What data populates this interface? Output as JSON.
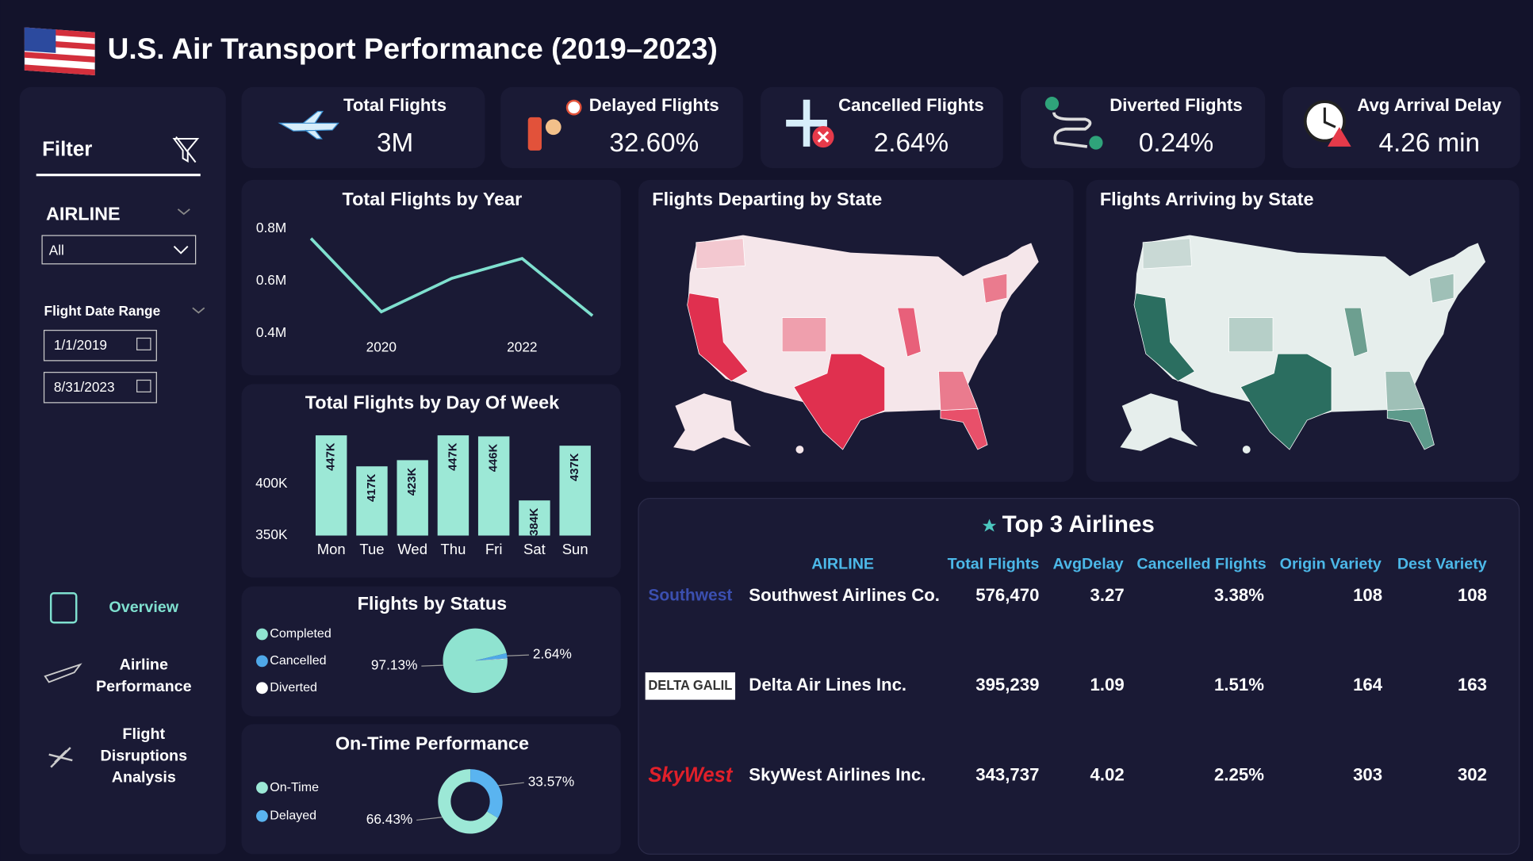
{
  "header": {
    "title": "U.S. Air Transport Performance (2019–2023)"
  },
  "kpis": [
    {
      "label": "Total Flights",
      "value": "3M"
    },
    {
      "label": "Delayed Flights",
      "value": "32.60%"
    },
    {
      "label": "Cancelled Flights",
      "value": "2.64%"
    },
    {
      "label": "Diverted Flights",
      "value": "0.24%"
    },
    {
      "label": "Avg Arrival Delay",
      "value": "4.26 min"
    }
  ],
  "filter": {
    "title": "Filter",
    "airline_label": "AIRLINE",
    "airline_value": "All",
    "date_label": "Flight Date Range",
    "date_start": "1/1/2019",
    "date_end": "8/31/2023"
  },
  "nav": [
    [
      "Overview"
    ],
    [
      "Airline",
      "Performance"
    ],
    [
      "Flight",
      "Disruptions",
      "Analysis"
    ]
  ],
  "maps": {
    "departing_title": "Flights Departing by State",
    "arriving_title": "Flights Arriving by State"
  },
  "chart_data": [
    {
      "type": "line",
      "title": "Total Flights by Year",
      "x": [
        2019,
        2020,
        2021,
        2022,
        2023
      ],
      "values": [
        763000,
        482000,
        610000,
        686000,
        467000
      ],
      "color": "#7fe0cf",
      "xlim": [
        2019,
        2023
      ],
      "xticks": [
        2020,
        2022
      ],
      "ylim": [
        385000,
        815000
      ],
      "yticks": [
        {
          "value": 400000,
          "label": "0.4M"
        },
        {
          "value": 600000,
          "label": "0.6M"
        },
        {
          "value": 800000,
          "label": "0.8M"
        }
      ]
    },
    {
      "type": "bar",
      "title": "Total Flights by Day Of Week",
      "categories": [
        "Mon",
        "Tue",
        "Wed",
        "Thu",
        "Fri",
        "Sat",
        "Sun"
      ],
      "values": [
        447000,
        417000,
        423000,
        447000,
        446000,
        384000,
        437000
      ],
      "value_labels": [
        "447K",
        "417K",
        "423K",
        "447K",
        "446K",
        "384K",
        "437K"
      ],
      "color": "#9ce8d6",
      "ylim": [
        350000,
        455000
      ],
      "yticks": [
        {
          "value": 350000,
          "label": "350K"
        },
        {
          "value": 400000,
          "label": "400K"
        }
      ]
    },
    {
      "type": "pie",
      "title": "Flights by Status",
      "categories": [
        "Completed",
        "Cancelled",
        "Diverted"
      ],
      "values": [
        97.13,
        2.64,
        0.24
      ],
      "value_labels": [
        "97.13%",
        "2.64%",
        null
      ],
      "colors": [
        "#8fe3d0",
        "#4fa8e8",
        "#ffffff"
      ]
    },
    {
      "type": "donut",
      "title": "On-Time Performance",
      "categories": [
        "On-Time",
        "Delayed"
      ],
      "values": [
        66.43,
        33.57
      ],
      "value_labels": [
        "66.43%",
        "33.57%"
      ],
      "colors": [
        "#9ce8d6",
        "#5ab4f0"
      ]
    }
  ],
  "table": {
    "title": "Top 3 Airlines",
    "columns": [
      "AIRLINE",
      "Total Flights",
      "AvgDelay",
      "Cancelled Flights",
      "Origin Variety",
      "Dest Variety"
    ],
    "rows": [
      {
        "logo": "Southwest",
        "cells": [
          "Southwest Airlines Co.",
          "576,470",
          "3.27",
          "3.38%",
          "108",
          "108"
        ]
      },
      {
        "logo": "DELTA GALIL",
        "cells": [
          "Delta Air Lines Inc.",
          "395,239",
          "1.09",
          "1.51%",
          "164",
          "163"
        ]
      },
      {
        "logo": "SkyWest",
        "cells": [
          "SkyWest Airlines Inc.",
          "343,737",
          "4.02",
          "2.25%",
          "303",
          "302"
        ]
      }
    ]
  }
}
